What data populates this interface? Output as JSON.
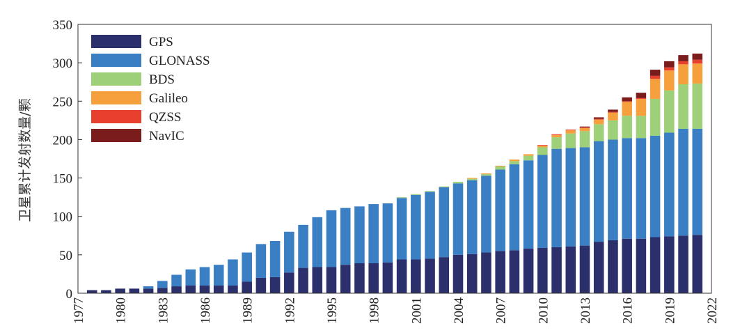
{
  "chart_data": {
    "type": "bar",
    "stacked": true,
    "title": "",
    "xlabel": "",
    "ylabel": "卫星累计发射数量/颗",
    "ylim": [
      0,
      350
    ],
    "yticks": [
      0,
      50,
      100,
      150,
      200,
      250,
      300,
      350
    ],
    "xlim": [
      1977,
      2022
    ],
    "xticks": [
      1977,
      1980,
      1983,
      1986,
      1989,
      1992,
      1995,
      1998,
      2001,
      2004,
      2007,
      2010,
      2013,
      2016,
      2019,
      2022
    ],
    "legend_position": "top-left",
    "grid": false,
    "x": [
      1978,
      1979,
      1980,
      1981,
      1982,
      1983,
      1984,
      1985,
      1986,
      1987,
      1988,
      1989,
      1990,
      1991,
      1992,
      1993,
      1994,
      1995,
      1996,
      1997,
      1998,
      1999,
      2000,
      2001,
      2002,
      2003,
      2004,
      2005,
      2006,
      2007,
      2008,
      2009,
      2010,
      2011,
      2012,
      2013,
      2014,
      2015,
      2016,
      2017,
      2018,
      2019,
      2020,
      2021
    ],
    "series": [
      {
        "name": "GPS",
        "color": "#2b2f6b",
        "values": [
          4,
          4,
          6,
          6,
          6,
          7,
          9,
          10,
          10,
          10,
          10,
          15,
          20,
          21,
          27,
          33,
          34,
          34,
          37,
          39,
          39,
          40,
          44,
          44,
          45,
          47,
          50,
          51,
          53,
          55,
          56,
          58,
          59,
          60,
          61,
          62,
          67,
          69,
          71,
          71,
          73,
          74,
          75,
          76
        ]
      },
      {
        "name": "GLONASS",
        "color": "#3a7ec4",
        "values": [
          0,
          0,
          0,
          0,
          3,
          9,
          15,
          21,
          24,
          27,
          34,
          38,
          44,
          47,
          53,
          56,
          65,
          74,
          74,
          74,
          77,
          77,
          80,
          84,
          87,
          91,
          93,
          96,
          100,
          106,
          112,
          115,
          121,
          128,
          128,
          128,
          131,
          131,
          131,
          131,
          132,
          135,
          139,
          138
        ]
      },
      {
        "name": "BDS",
        "color": "#9ed07a",
        "values": [
          0,
          0,
          0,
          0,
          0,
          0,
          0,
          0,
          0,
          0,
          0,
          0,
          0,
          0,
          0,
          0,
          0,
          0,
          0,
          0,
          0,
          0,
          1,
          1,
          1,
          1,
          2,
          2,
          2,
          4,
          4,
          6,
          10,
          15,
          19,
          21,
          22,
          25,
          29,
          29,
          48,
          55,
          58,
          59
        ]
      },
      {
        "name": "Galileo",
        "color": "#f5a03c",
        "values": [
          0,
          0,
          0,
          0,
          0,
          0,
          0,
          0,
          0,
          0,
          0,
          0,
          0,
          0,
          0,
          0,
          0,
          0,
          0,
          0,
          0,
          0,
          0,
          0,
          0,
          0,
          0,
          1,
          1,
          1,
          2,
          2,
          2,
          3,
          4,
          4,
          6,
          10,
          18,
          22,
          26,
          26,
          26,
          26
        ]
      },
      {
        "name": "QZSS",
        "color": "#e8402e",
        "values": [
          0,
          0,
          0,
          0,
          0,
          0,
          0,
          0,
          0,
          0,
          0,
          0,
          0,
          0,
          0,
          0,
          0,
          0,
          0,
          0,
          0,
          0,
          0,
          0,
          0,
          0,
          0,
          0,
          0,
          0,
          0,
          0,
          1,
          1,
          1,
          1,
          1,
          1,
          1,
          1,
          4,
          4,
          4,
          5
        ]
      },
      {
        "name": "NavIC",
        "color": "#7a1c1c",
        "values": [
          0,
          0,
          0,
          0,
          0,
          0,
          0,
          0,
          0,
          0,
          0,
          0,
          0,
          0,
          0,
          0,
          0,
          0,
          0,
          0,
          0,
          0,
          0,
          0,
          0,
          0,
          0,
          0,
          0,
          0,
          0,
          0,
          0,
          0,
          0,
          1,
          2,
          3,
          5,
          7,
          8,
          8,
          8,
          8
        ]
      }
    ]
  }
}
